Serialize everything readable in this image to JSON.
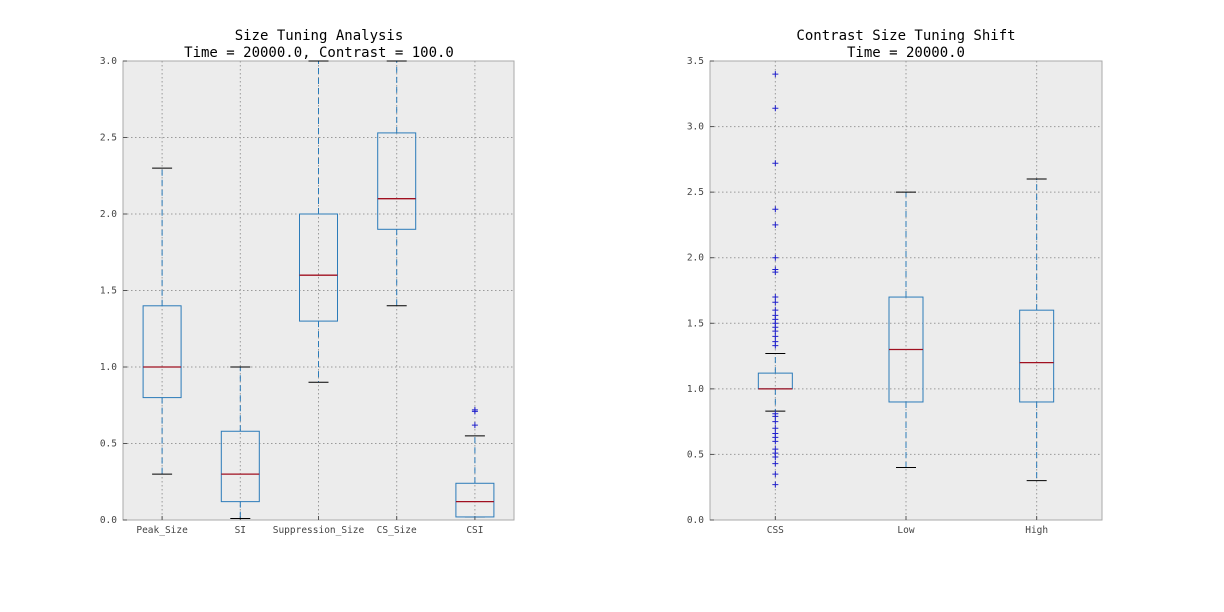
{
  "chart_data": [
    {
      "type": "boxplot",
      "title_line1": "Size Tuning Analysis",
      "title_line2": "Time = 20000.0, Contrast = 100.0",
      "ylim": [
        0,
        3.0
      ],
      "yticks": [
        "0.0",
        "0.5",
        "1.0",
        "1.5",
        "2.0",
        "2.5",
        "3.0"
      ],
      "grid": true,
      "categories": [
        "Peak_Size",
        "SI",
        "Suppression_Size",
        "CS_Size",
        "CSI"
      ],
      "boxes": [
        {
          "label": "Peak_Size",
          "whisker_low": 0.3,
          "q1": 0.8,
          "median": 1.0,
          "q3": 1.4,
          "whisker_high": 2.3,
          "fliers": []
        },
        {
          "label": "SI",
          "whisker_low": 0.01,
          "q1": 0.12,
          "median": 0.3,
          "q3": 0.58,
          "whisker_high": 1.0,
          "fliers": []
        },
        {
          "label": "Suppression_Size",
          "whisker_low": 0.9,
          "q1": 1.3,
          "median": 1.6,
          "q3": 2.0,
          "whisker_high": 3.0,
          "fliers": []
        },
        {
          "label": "CS_Size",
          "whisker_low": 1.4,
          "q1": 1.9,
          "median": 2.1,
          "q3": 2.53,
          "whisker_high": 3.0,
          "fliers": []
        },
        {
          "label": "CSI",
          "whisker_low": 0.02,
          "q1": 0.02,
          "median": 0.12,
          "q3": 0.24,
          "whisker_high": 0.55,
          "fliers": [
            0.62,
            0.71,
            0.72
          ]
        }
      ]
    },
    {
      "type": "boxplot",
      "title_line1": "Contrast Size Tuning Shift",
      "title_line2": "Time = 20000.0",
      "ylim": [
        0,
        3.5
      ],
      "yticks": [
        "0.0",
        "0.5",
        "1.0",
        "1.5",
        "2.0",
        "2.5",
        "3.0",
        "3.5"
      ],
      "grid": true,
      "categories": [
        "CSS",
        "Low",
        "High"
      ],
      "boxes": [
        {
          "label": "CSS",
          "whisker_low": 0.83,
          "q1": 1.0,
          "median": 1.0,
          "q3": 1.12,
          "whisker_high": 1.27,
          "fliers": [
            0.27,
            0.35,
            0.43,
            0.48,
            0.51,
            0.54,
            0.6,
            0.63,
            0.66,
            0.7,
            0.75,
            0.79,
            0.81,
            1.33,
            1.36,
            1.4,
            1.44,
            1.47,
            1.5,
            1.53,
            1.56,
            1.6,
            1.66,
            1.7,
            1.89,
            1.91,
            2.0,
            2.25,
            2.37,
            2.72,
            3.14,
            3.4
          ]
        },
        {
          "label": "Low",
          "whisker_low": 0.4,
          "q1": 0.9,
          "median": 1.3,
          "q3": 1.7,
          "whisker_high": 2.5,
          "fliers": []
        },
        {
          "label": "High",
          "whisker_low": 0.3,
          "q1": 0.9,
          "median": 1.2,
          "q3": 1.6,
          "whisker_high": 2.6,
          "fliers": []
        }
      ]
    }
  ]
}
